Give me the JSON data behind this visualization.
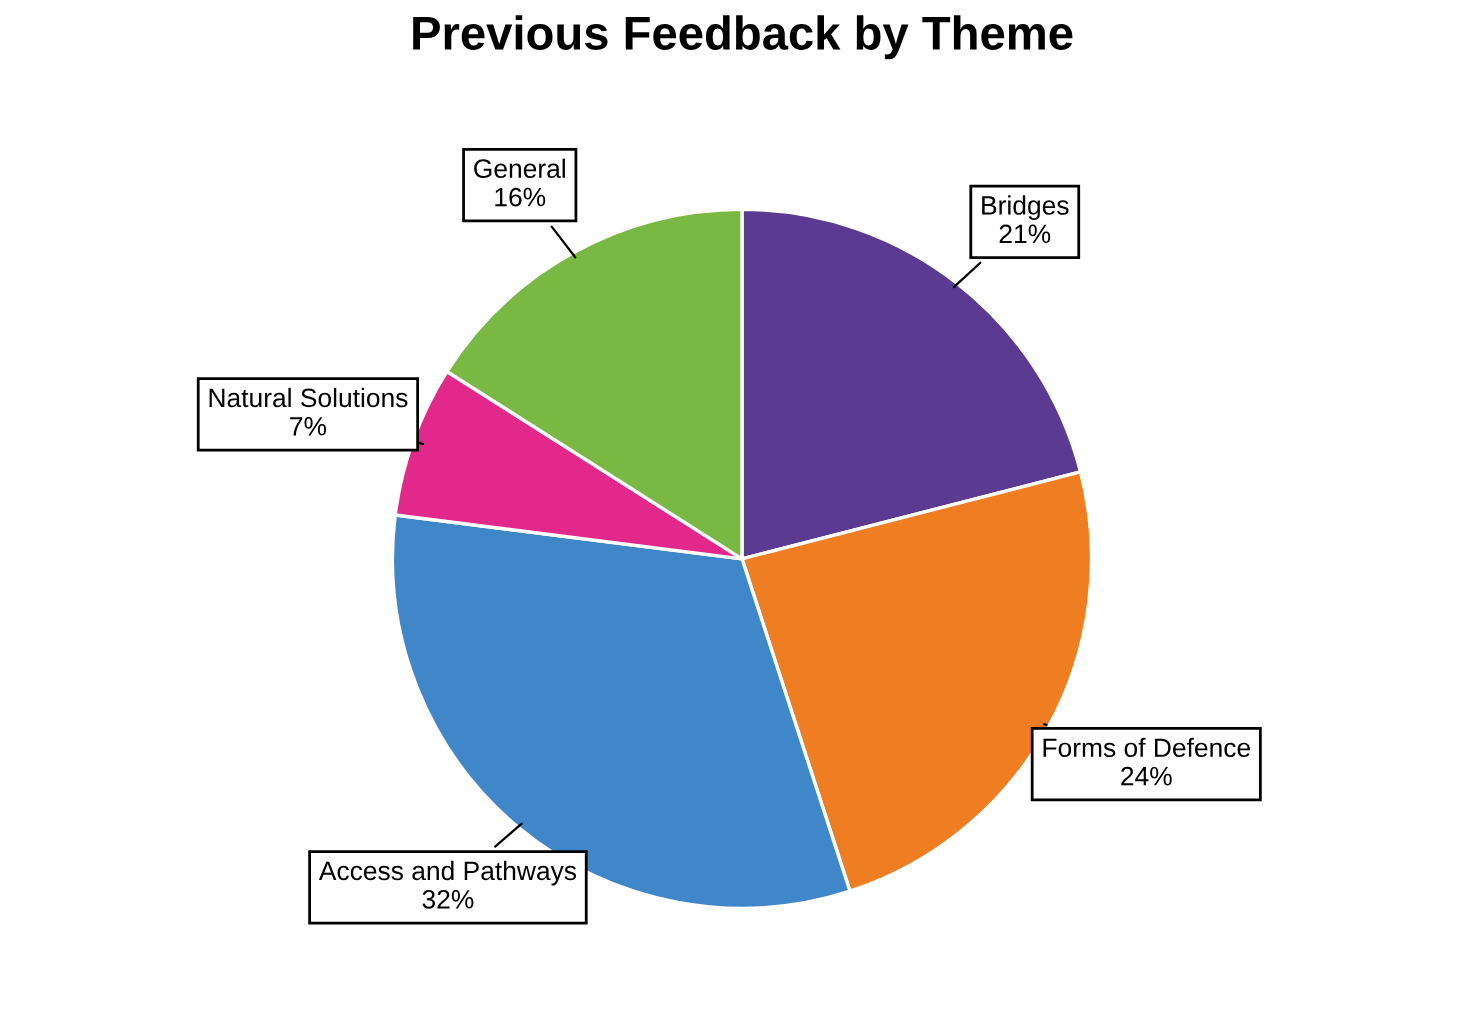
{
  "chart_data": {
    "type": "pie",
    "title": "Previous Feedback by Theme",
    "categories": [
      "Bridges",
      "Forms of Defence",
      "Access and Pathways",
      "Natural Solutions",
      "General"
    ],
    "values": [
      21,
      24,
      32,
      7,
      16
    ],
    "colors": [
      "#5b3b92",
      "#ef7d22",
      "#3f87c9",
      "#e2288a",
      "#79b843"
    ],
    "value_labels": [
      "21%",
      "24%",
      "32%",
      "7%",
      "16%"
    ],
    "legend": false
  }
}
